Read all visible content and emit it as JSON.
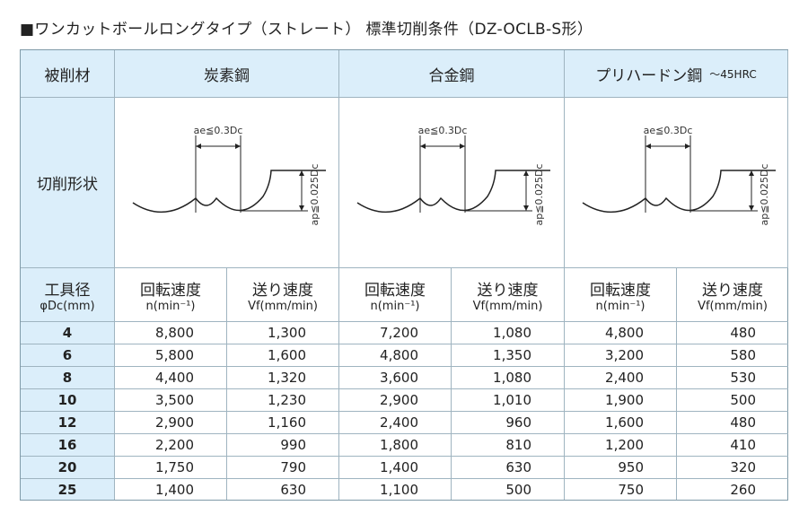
{
  "title": "■ワンカットボールロングタイプ（ストレート） 標準切削条件（DZ-OCLB-S形）",
  "table": {
    "header": {
      "label": "被削材",
      "materials": [
        {
          "name": "炭素鋼"
        },
        {
          "name": "合金鋼"
        },
        {
          "name": "プリハードン鋼",
          "note": "～45HRC"
        }
      ]
    },
    "shape_label": "切削形状",
    "diagram": {
      "ae": "ae≦0.3Dc",
      "ap": "ap≦0.025Dc"
    },
    "subheader": {
      "diameter": "工具径",
      "diameter_unit": "φDc(mm)",
      "speed": "回転速度",
      "speed_unit": "n(min⁻¹)",
      "feed": "送り速度",
      "feed_unit": "Vf(mm/min)"
    },
    "rows": [
      [
        "4",
        "8,800",
        "1,300",
        "7,200",
        "1,080",
        "4,800",
        "480"
      ],
      [
        "6",
        "5,800",
        "1,600",
        "4,800",
        "1,350",
        "3,200",
        "580"
      ],
      [
        "8",
        "4,400",
        "1,320",
        "3,600",
        "1,080",
        "2,400",
        "530"
      ],
      [
        "10",
        "3,500",
        "1,230",
        "2,900",
        "1,010",
        "1,900",
        "500"
      ],
      [
        "12",
        "2,900",
        "1,160",
        "2,400",
        "960",
        "1,600",
        "480"
      ],
      [
        "16",
        "2,200",
        "990",
        "1,800",
        "810",
        "1,200",
        "410"
      ],
      [
        "20",
        "1,750",
        "790",
        "1,400",
        "630",
        "950",
        "320"
      ],
      [
        "25",
        "1,400",
        "630",
        "1,100",
        "500",
        "750",
        "260"
      ]
    ]
  }
}
